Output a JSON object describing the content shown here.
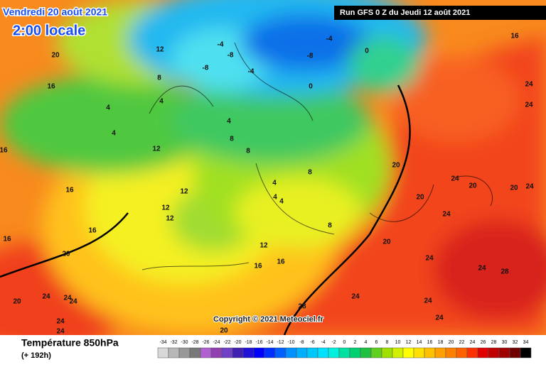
{
  "header": {
    "valid_date": "Vendredi 20 août 2021",
    "local_time": "2:00 locale",
    "run": "Run GFS 0 Z du Jeudi 12 août 2021"
  },
  "copyright": "Copyright © 2021 Meteociel.fr",
  "legend": {
    "title": "Température 850hPa",
    "lead": "(+ 192h)"
  },
  "color_scale": {
    "ticks": [
      -34,
      -32,
      -30,
      -28,
      -26,
      -24,
      -22,
      -20,
      -18,
      -16,
      -14,
      -12,
      -10,
      -8,
      -6,
      -4,
      -2,
      0,
      2,
      4,
      6,
      8,
      10,
      12,
      14,
      16,
      18,
      20,
      22,
      24,
      26,
      28,
      30,
      32,
      34
    ],
    "colors": [
      "#d8d8d8",
      "#b8b8b8",
      "#989898",
      "#787878",
      "#b060d0",
      "#9040b0",
      "#7040c8",
      "#4020b0",
      "#2010d8",
      "#0000ff",
      "#0030ff",
      "#0060ff",
      "#0090ff",
      "#00b0ff",
      "#00c8ff",
      "#00e0ff",
      "#00f0e0",
      "#00e0a0",
      "#00d070",
      "#20c040",
      "#60d020",
      "#a0e000",
      "#d0f000",
      "#ffff00",
      "#ffe000",
      "#ffc000",
      "#ffa000",
      "#ff8000",
      "#ff6000",
      "#ff3000",
      "#e00000",
      "#c00000",
      "#a00000",
      "#700000",
      "#000000"
    ]
  },
  "contour_labels": [
    20,
    16,
    16,
    16,
    16,
    16,
    20,
    20,
    24,
    24,
    24,
    24,
    24,
    4,
    4,
    12,
    12,
    12,
    12,
    12,
    8,
    4,
    -4,
    -8,
    -8,
    -4,
    -8,
    -4,
    0,
    0,
    4,
    8,
    8,
    4,
    4,
    4,
    8,
    8,
    12,
    16,
    16,
    24,
    28,
    24,
    24,
    20,
    20,
    20,
    24,
    28,
    24,
    24,
    24,
    20,
    24,
    20,
    24,
    24,
    20,
    16
  ]
}
